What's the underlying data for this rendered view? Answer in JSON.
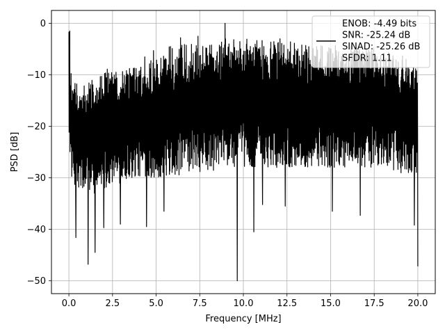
{
  "chart_data": {
    "type": "line",
    "xlabel": "Frequency [MHz]",
    "ylabel": "PSD [dB]",
    "xlim": [
      -1.0,
      21.0
    ],
    "ylim": [
      -52.5,
      2.5
    ],
    "x_ticks": [
      0.0,
      2.5,
      5.0,
      7.5,
      10.0,
      12.5,
      15.0,
      17.5,
      20.0
    ],
    "x_tick_labels": [
      "0.0",
      "2.5",
      "5.0",
      "7.5",
      "10.0",
      "12.5",
      "15.0",
      "17.5",
      "20.0"
    ],
    "y_ticks": [
      0,
      -10,
      -20,
      -30,
      -40,
      -50
    ],
    "y_tick_labels": [
      "0",
      "−10",
      "−20",
      "−30",
      "−40",
      "−50"
    ],
    "grid": true,
    "legend_position": "top-right",
    "legend_lines": [
      "ENOB: -4.49 bits",
      "SNR: -25.24 dB",
      "SINAD: -25.26 dB",
      "SFDR: 1.11"
    ],
    "series": [
      {
        "color": "#000000",
        "envelope": {
          "x": [
            0.0,
            0.05,
            0.2,
            0.5,
            1.0,
            1.5,
            2.0,
            3.0,
            4.0,
            5.0,
            6.0,
            7.0,
            8.0,
            9.0,
            10.0,
            11.0,
            12.0,
            13.0,
            14.0,
            15.0,
            16.0,
            17.0,
            18.0,
            19.0,
            20.0
          ],
          "upper": [
            -1.5,
            -9,
            -10,
            -12,
            -11,
            -10,
            -9,
            -8,
            -7,
            -5,
            -4,
            -4,
            -3.5,
            -3,
            -3,
            -3,
            -3.5,
            -3.5,
            -4,
            -4,
            -4,
            -4.5,
            -5,
            -6,
            -8
          ],
          "lower": [
            -20,
            -25,
            -32,
            -33,
            -33,
            -33,
            -32,
            -31,
            -30,
            -30,
            -30,
            -29,
            -29,
            -28,
            -28,
            -28,
            -28,
            -28,
            -28,
            -28,
            -28,
            -28,
            -28,
            -29,
            -30
          ]
        },
        "spikes_down": [
          [
            0.4,
            -41.6
          ],
          [
            1.1,
            -46.8
          ],
          [
            1.5,
            -44.5
          ],
          [
            2.0,
            -39.7
          ],
          [
            2.95,
            -39.0
          ],
          [
            4.45,
            -39.5
          ],
          [
            5.45,
            -36.5
          ],
          [
            9.65,
            -50.0
          ],
          [
            10.6,
            -40.5
          ],
          [
            11.1,
            -35.2
          ],
          [
            12.4,
            -35.5
          ],
          [
            15.1,
            -36.5
          ],
          [
            16.7,
            -37.3
          ],
          [
            19.8,
            -39.2
          ],
          [
            20.0,
            -47.2
          ]
        ],
        "spikes_up": [
          [
            0.05,
            -1.5
          ],
          [
            8.95,
            0.0
          ],
          [
            7.4,
            -2.5
          ],
          [
            6.4,
            -2.8
          ],
          [
            12.1,
            -3.0
          ]
        ]
      }
    ]
  }
}
